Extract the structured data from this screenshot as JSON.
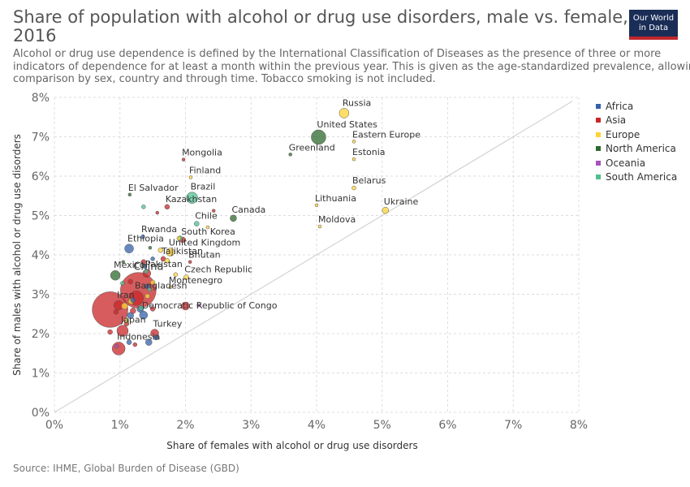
{
  "header": {
    "title_line1": "Share of population with alcohol or drug use disorders, male vs. female,",
    "title_line2": "2016",
    "subtitle_line1": "Alcohol or drug use dependence is defined by the International Classification of Diseases as the presence of three or more",
    "subtitle_line2": "indicators of dependence for at least a month within the previous year. This is given as the age-standardized prevalence, allowing",
    "subtitle_line3": "comparison by sex, country and through time. Tobacco smoking is not included."
  },
  "logo": {
    "line1": "Our World",
    "line2": "in Data"
  },
  "source": "Source: IHME, Global Burden of Disease (GBD)",
  "legend": [
    {
      "name": "Africa",
      "color": "#3360a9"
    },
    {
      "name": "Asia",
      "color": "#ca2628"
    },
    {
      "name": "Europe",
      "color": "#ffd336"
    },
    {
      "name": "North America",
      "color": "#2d6a2d"
    },
    {
      "name": "Oceania",
      "color": "#a652ba"
    },
    {
      "name": "South America",
      "color": "#4fc08d"
    }
  ],
  "chart_data": {
    "type": "scatter",
    "xlabel": "Share of females with alcohol or drug use disorders",
    "ylabel": "Share of males with alcohol or drug use disorders",
    "xlim": [
      0,
      8
    ],
    "ylim": [
      0,
      8
    ],
    "x_ticks": [
      "0%",
      "1%",
      "2%",
      "3%",
      "4%",
      "5%",
      "6%",
      "7%",
      "8%"
    ],
    "y_ticks": [
      "0%",
      "1%",
      "2%",
      "3%",
      "4%",
      "5%",
      "6%",
      "7%",
      "8%"
    ],
    "grid": true,
    "diagonal_line": true,
    "legend_position": "right",
    "points": [
      {
        "label": "Russia",
        "region": "Europe",
        "x": 4.42,
        "y": 7.6,
        "size": 6
      },
      {
        "label": "United States",
        "region": "North America",
        "x": 4.03,
        "y": 6.99,
        "size": 9
      },
      {
        "label": "Eastern Europe",
        "region": "Europe",
        "x": 4.57,
        "y": 6.88,
        "size": 2
      },
      {
        "label": "Greenland",
        "region": "North America",
        "x": 3.6,
        "y": 6.55,
        "size": 2
      },
      {
        "label": "Estonia",
        "region": "Europe",
        "x": 4.57,
        "y": 6.43,
        "size": 2
      },
      {
        "label": "Mongolia",
        "region": "Asia",
        "x": 1.97,
        "y": 6.42,
        "size": 2
      },
      {
        "label": "Finland",
        "region": "Europe",
        "x": 2.08,
        "y": 5.97,
        "size": 2
      },
      {
        "label": "Belarus",
        "region": "Europe",
        "x": 4.57,
        "y": 5.7,
        "size": 2.5
      },
      {
        "label": "El Salvador",
        "region": "North America",
        "x": 1.15,
        "y": 5.53,
        "size": 2
      },
      {
        "label": "Brazil",
        "region": "South America",
        "x": 2.1,
        "y": 5.45,
        "size": 7
      },
      {
        "label": "Lithuania",
        "region": "Europe",
        "x": 4.0,
        "y": 5.26,
        "size": 2
      },
      {
        "label": "Ukraine",
        "region": "Europe",
        "x": 5.05,
        "y": 5.13,
        "size": 4
      },
      {
        "label": "Kazakhstan",
        "region": "Asia",
        "x": 1.72,
        "y": 5.22,
        "size": 3
      },
      {
        "label": "Canada",
        "region": "North America",
        "x": 2.73,
        "y": 4.93,
        "size": 4
      },
      {
        "label": "Chile",
        "region": "South America",
        "x": 2.17,
        "y": 4.79,
        "size": 3
      },
      {
        "label": "Moldova",
        "region": "Europe",
        "x": 4.05,
        "y": 4.72,
        "size": 2
      },
      {
        "label": "South Korea",
        "region": "Asia",
        "x": 1.96,
        "y": 4.38,
        "size": 3.5
      },
      {
        "label": "Rwanda",
        "region": "Africa",
        "x": 1.35,
        "y": 4.46,
        "size": 2.5
      },
      {
        "label": "Ethiopia",
        "region": "Africa",
        "x": 1.14,
        "y": 4.16,
        "size": 5.5
      },
      {
        "label": "United Kingdom",
        "region": "Europe",
        "x": 1.77,
        "y": 4.07,
        "size": 5
      },
      {
        "label": "Tajikistan",
        "region": "Asia",
        "x": 1.66,
        "y": 3.9,
        "size": 3
      },
      {
        "label": "Bhutan",
        "region": "Asia",
        "x": 2.07,
        "y": 3.82,
        "size": 2
      },
      {
        "label": "Mexico",
        "region": "North America",
        "x": 0.93,
        "y": 3.48,
        "size": 6
      },
      {
        "label": "Pakistan",
        "region": "Asia",
        "x": 1.41,
        "y": 3.53,
        "size": 5
      },
      {
        "label": "Czech Republic",
        "region": "Europe",
        "x": 2.01,
        "y": 3.43,
        "size": 3
      },
      {
        "label": "Montenegro",
        "region": "Europe",
        "x": 1.77,
        "y": 3.18,
        "size": 2
      },
      {
        "label": "China",
        "region": "Asia",
        "x": 1.28,
        "y": 3.1,
        "size": 22
      },
      {
        "label": "Bangladesh",
        "region": "Asia",
        "x": 1.25,
        "y": 2.9,
        "size": 9
      },
      {
        "label": "Iran",
        "region": "Asia",
        "x": 0.98,
        "y": 2.72,
        "size": 6
      },
      {
        "label": "Democratic Republic of Congo",
        "region": "Africa",
        "x": 1.36,
        "y": 2.47,
        "size": 5
      },
      {
        "label": "",
        "region": "Asia",
        "x": 0.85,
        "y": 2.61,
        "size": 22
      },
      {
        "label": "",
        "region": "Asia",
        "x": 2.0,
        "y": 2.7,
        "size": 5
      },
      {
        "label": "Japan",
        "region": "Asia",
        "x": 1.04,
        "y": 2.07,
        "size": 7
      },
      {
        "label": "Turkey",
        "region": "Asia",
        "x": 1.53,
        "y": 2.01,
        "size": 5
      },
      {
        "label": "Indonesia",
        "region": "Asia",
        "x": 0.98,
        "y": 1.62,
        "size": 8
      },
      {
        "label": "",
        "region": "Africa",
        "x": 1.44,
        "y": 1.78,
        "size": 4
      },
      {
        "label": "",
        "region": "Africa",
        "x": 1.14,
        "y": 1.78,
        "size": 3
      },
      {
        "label": "",
        "region": "Asia",
        "x": 0.85,
        "y": 2.04,
        "size": 3
      },
      {
        "label": "",
        "region": "Africa",
        "x": 1.55,
        "y": 1.9,
        "size": 3
      },
      {
        "label": "",
        "region": "Africa",
        "x": 1.16,
        "y": 2.46,
        "size": 4
      },
      {
        "label": "",
        "region": "Africa",
        "x": 1.31,
        "y": 2.62,
        "size": 4
      },
      {
        "label": "",
        "region": "Africa",
        "x": 1.2,
        "y": 2.85,
        "size": 3
      },
      {
        "label": "",
        "region": "Africa",
        "x": 1.42,
        "y": 3.2,
        "size": 3
      },
      {
        "label": "",
        "region": "Africa",
        "x": 1.38,
        "y": 3.7,
        "size": 2.5
      },
      {
        "label": "",
        "region": "Africa",
        "x": 1.5,
        "y": 3.9,
        "size": 2.5
      },
      {
        "label": "",
        "region": "Asia",
        "x": 1.1,
        "y": 2.25,
        "size": 3
      },
      {
        "label": "",
        "region": "Asia",
        "x": 1.2,
        "y": 2.58,
        "size": 3.5
      },
      {
        "label": "",
        "region": "Asia",
        "x": 0.94,
        "y": 2.55,
        "size": 3
      },
      {
        "label": "",
        "region": "Asia",
        "x": 1.16,
        "y": 3.32,
        "size": 3
      },
      {
        "label": "",
        "region": "Asia",
        "x": 1.36,
        "y": 3.82,
        "size": 3
      },
      {
        "label": "",
        "region": "Asia",
        "x": 1.57,
        "y": 5.07,
        "size": 2
      },
      {
        "label": "",
        "region": "Asia",
        "x": 2.43,
        "y": 5.12,
        "size": 2
      },
      {
        "label": "",
        "region": "Asia",
        "x": 1.23,
        "y": 1.72,
        "size": 2.5
      },
      {
        "label": "",
        "region": "Asia",
        "x": 1.5,
        "y": 2.63,
        "size": 3
      },
      {
        "label": "",
        "region": "Europe",
        "x": 1.07,
        "y": 2.7,
        "size": 4
      },
      {
        "label": "",
        "region": "Europe",
        "x": 1.17,
        "y": 2.82,
        "size": 3.5
      },
      {
        "label": "",
        "region": "Europe",
        "x": 1.62,
        "y": 4.12,
        "size": 3
      },
      {
        "label": "",
        "region": "Europe",
        "x": 1.72,
        "y": 3.85,
        "size": 3
      },
      {
        "label": "",
        "region": "Europe",
        "x": 1.5,
        "y": 3.3,
        "size": 3
      },
      {
        "label": "",
        "region": "Europe",
        "x": 1.1,
        "y": 2.33,
        "size": 3
      },
      {
        "label": "",
        "region": "Europe",
        "x": 1.42,
        "y": 2.95,
        "size": 3
      },
      {
        "label": "",
        "region": "Europe",
        "x": 1.85,
        "y": 3.5,
        "size": 2.5
      },
      {
        "label": "",
        "region": "Europe",
        "x": 2.34,
        "y": 4.7,
        "size": 2
      },
      {
        "label": "",
        "region": "Europe",
        "x": 1.9,
        "y": 4.42,
        "size": 2.5
      },
      {
        "label": "",
        "region": "South America",
        "x": 1.36,
        "y": 5.22,
        "size": 2.5
      },
      {
        "label": "",
        "region": "South America",
        "x": 1.04,
        "y": 3.28,
        "size": 2.5
      },
      {
        "label": "",
        "region": "South America",
        "x": 1.4,
        "y": 3.58,
        "size": 2.5
      },
      {
        "label": "",
        "region": "South America",
        "x": 1.45,
        "y": 3.12,
        "size": 2.5
      },
      {
        "label": "",
        "region": "South America",
        "x": 1.92,
        "y": 4.42,
        "size": 3
      },
      {
        "label": "",
        "region": "South America",
        "x": 1.32,
        "y": 2.65,
        "size": 3
      },
      {
        "label": "",
        "region": "North America",
        "x": 1.05,
        "y": 3.82,
        "size": 2
      },
      {
        "label": "",
        "region": "North America",
        "x": 1.46,
        "y": 4.18,
        "size": 2
      },
      {
        "label": "",
        "region": "Oceania",
        "x": 0.95,
        "y": 1.68,
        "size": 2.5
      },
      {
        "label": "",
        "region": "Oceania",
        "x": 2.2,
        "y": 2.72,
        "size": 2
      }
    ]
  }
}
